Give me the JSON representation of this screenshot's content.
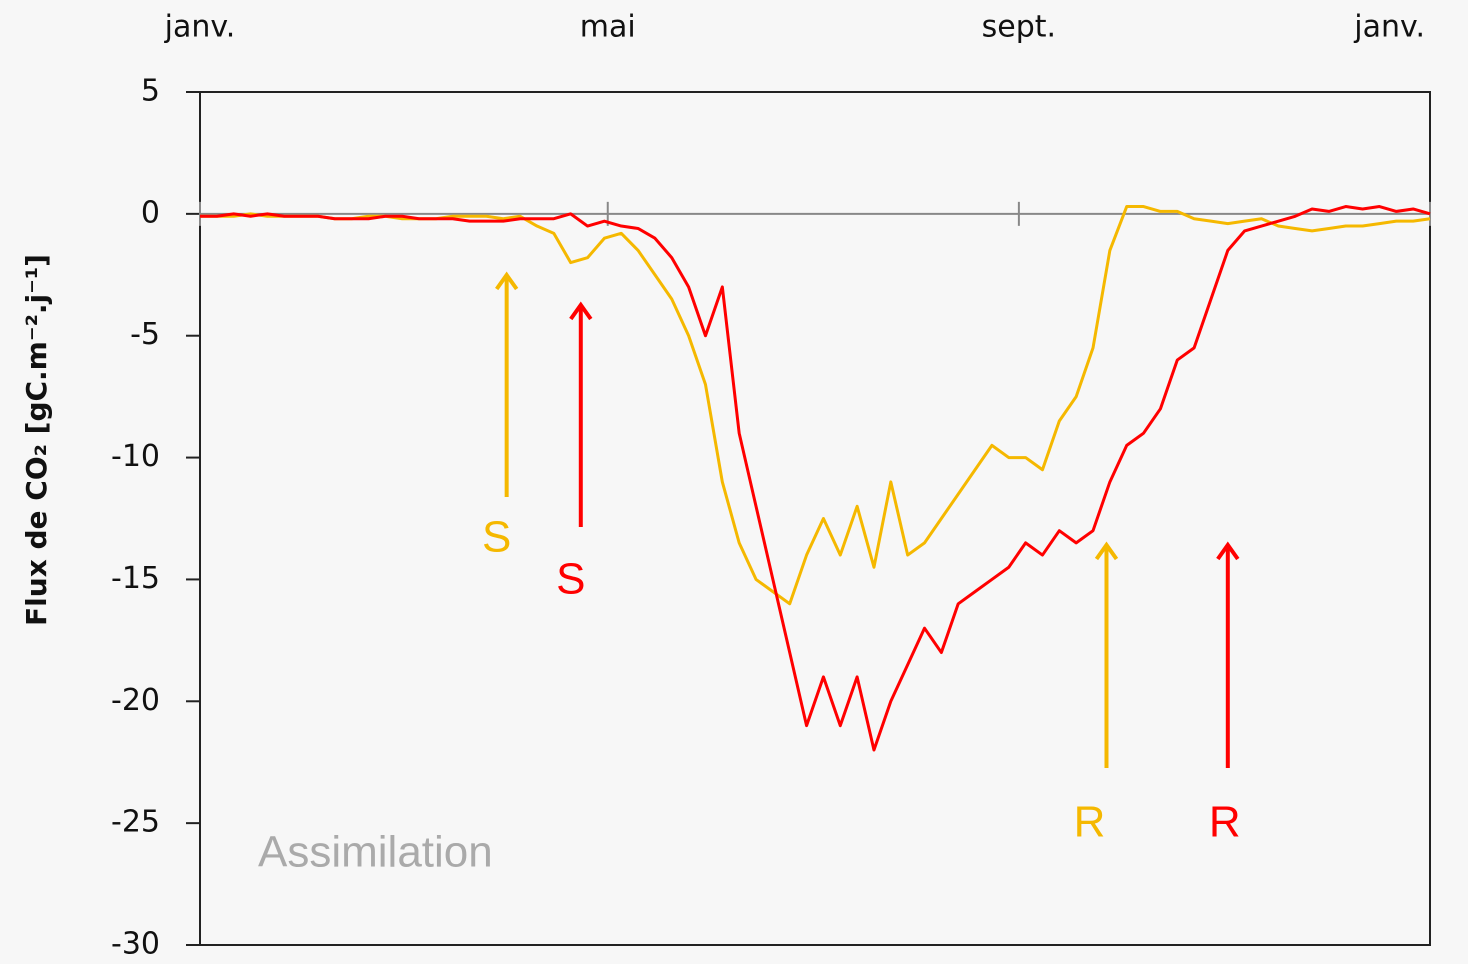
{
  "chart_data": {
    "type": "line",
    "y_label": "Flux de CO₂ [gC.m⁻².j⁻¹]",
    "x": [
      0,
      5,
      10,
      15,
      20,
      25,
      30,
      35,
      40,
      45,
      50,
      55,
      60,
      65,
      70,
      75,
      80,
      85,
      90,
      95,
      100,
      105,
      110,
      115,
      120,
      125,
      130,
      135,
      140,
      145,
      150,
      155,
      160,
      165,
      170,
      175,
      180,
      185,
      190,
      195,
      200,
      205,
      210,
      215,
      220,
      225,
      230,
      235,
      240,
      245,
      250,
      255,
      260,
      265,
      270,
      275,
      280,
      285,
      290,
      295,
      300,
      305,
      310,
      315,
      320,
      325,
      330,
      335,
      340,
      345,
      350,
      355,
      360,
      365
    ],
    "series": [
      {
        "color": "#f5b800",
        "values": [
          -0.1,
          -0.1,
          -0.1,
          0,
          -0.1,
          -0.1,
          -0.1,
          -0.1,
          -0.2,
          -0.2,
          -0.1,
          -0.1,
          -0.2,
          -0.2,
          -0.2,
          -0.1,
          -0.1,
          -0.1,
          -0.2,
          -0.1,
          -0.5,
          -0.8,
          -2,
          -1.8,
          -1,
          -0.8,
          -1.5,
          -2.5,
          -3.5,
          -5,
          -7,
          -11,
          -13.5,
          -15,
          -15.5,
          -16,
          -14,
          -12.5,
          -14,
          -12,
          -14.5,
          -11,
          -14,
          -13.5,
          -12.5,
          -11.5,
          -10.5,
          -9.5,
          -10,
          -10,
          -10.5,
          -8.5,
          -7.5,
          -5.5,
          -1.5,
          0.3,
          0.3,
          0.1,
          0.1,
          -0.2,
          -0.3,
          -0.4,
          -0.3,
          -0.2,
          -0.5,
          -0.6,
          -0.7,
          -0.6,
          -0.5,
          -0.5,
          -0.4,
          -0.3,
          -0.3,
          -0.2
        ]
      },
      {
        "color": "#ff0000",
        "values": [
          -0.1,
          -0.1,
          0,
          -0.1,
          0,
          -0.1,
          -0.1,
          -0.1,
          -0.2,
          -0.2,
          -0.2,
          -0.1,
          -0.1,
          -0.2,
          -0.2,
          -0.2,
          -0.3,
          -0.3,
          -0.3,
          -0.2,
          -0.2,
          -0.2,
          0,
          -0.5,
          -0.3,
          -0.5,
          -0.6,
          -1,
          -1.8,
          -3,
          -5,
          -3,
          -9,
          -12,
          -15,
          -18,
          -21,
          -19,
          -21,
          -19,
          -22,
          -20,
          -18.5,
          -17,
          -18,
          -16,
          -15.5,
          -15,
          -14.5,
          -13.5,
          -14,
          -13,
          -13.5,
          -13,
          -11,
          -9.5,
          -9,
          -8,
          -6,
          -5.5,
          -3.5,
          -1.5,
          -0.7,
          -0.5,
          -0.3,
          -0.1,
          0.2,
          0.1,
          0.3,
          0.2,
          0.3,
          0.1,
          0.2,
          0
        ]
      }
    ],
    "xlim": [
      0,
      365
    ],
    "xticks": [
      {
        "value": 0,
        "label": "janv."
      },
      {
        "value": 121,
        "label": "mai"
      },
      {
        "value": 243,
        "label": "sept."
      },
      {
        "value": 365,
        "label": "janv."
      }
    ],
    "ylim": [
      -30,
      5
    ],
    "yticks": [
      -30,
      -25,
      -20,
      -15,
      -10,
      -5,
      0,
      5
    ],
    "annotations": [
      {
        "text": "S",
        "color": "#f5b800",
        "x": 91
      },
      {
        "text": "S",
        "color": "#ff0000",
        "x": 113
      },
      {
        "text": "R",
        "color": "#f5b800",
        "x": 269
      },
      {
        "text": "R",
        "color": "#ff0000",
        "x": 305
      },
      {
        "text": "Assimilation",
        "color": "#aaaaaa"
      }
    ]
  }
}
